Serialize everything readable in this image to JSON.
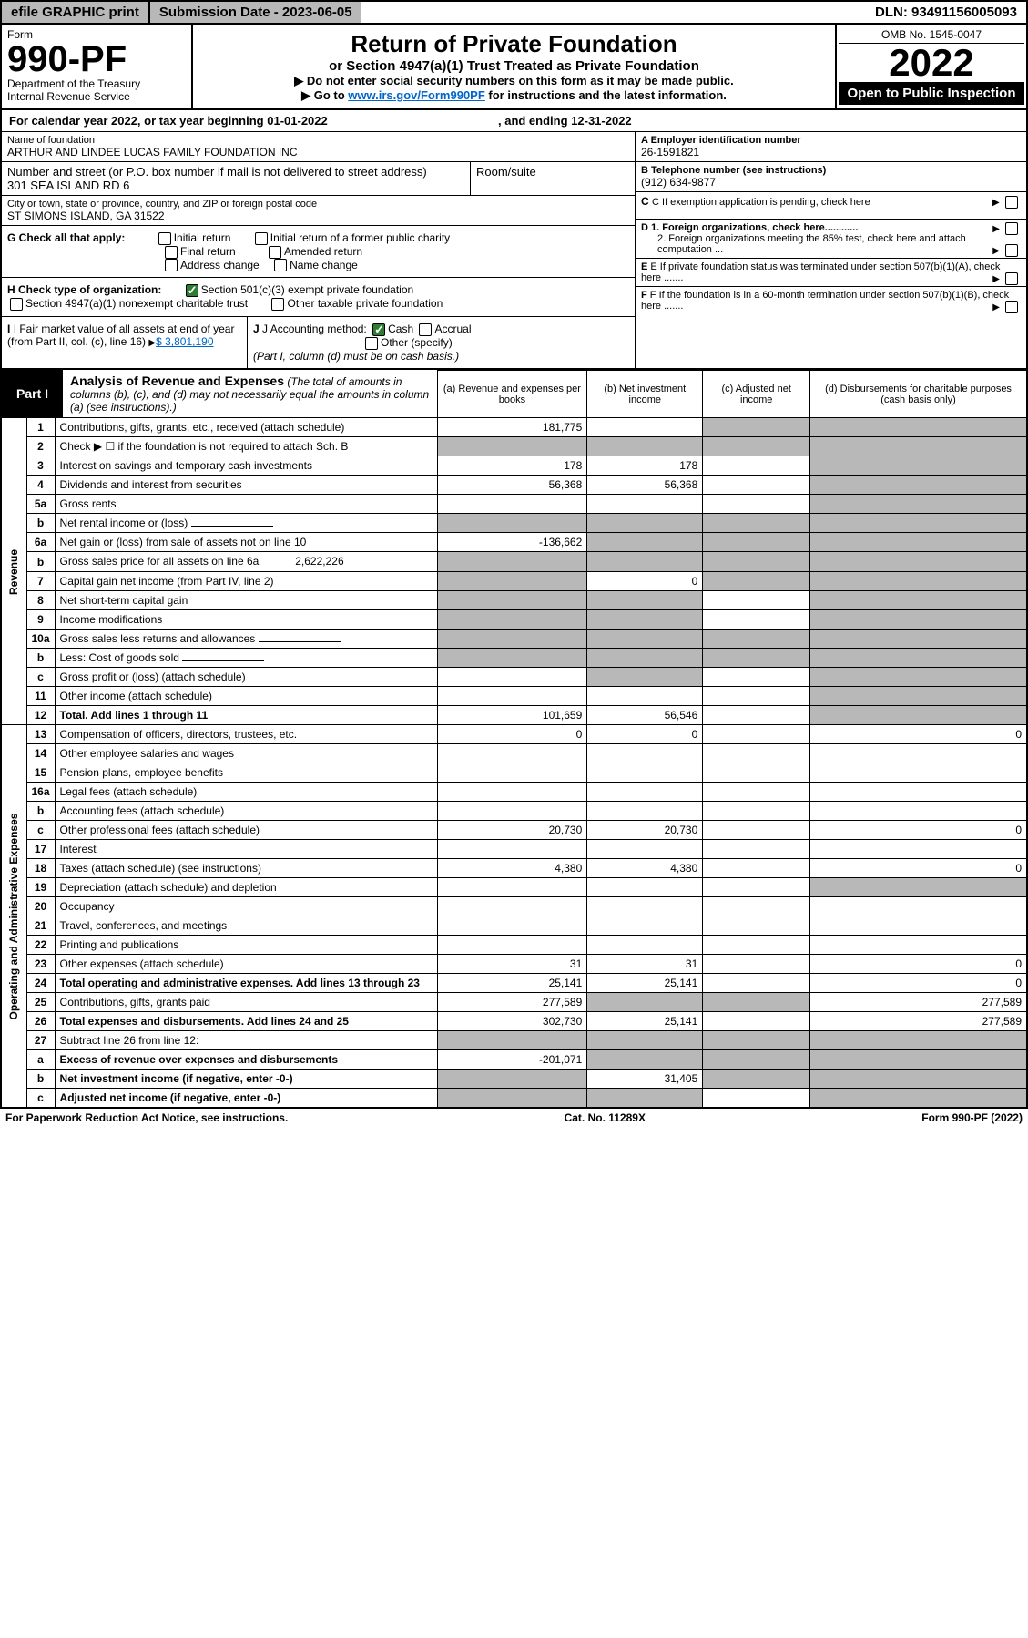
{
  "topbar": {
    "efile": "efile GRAPHIC print",
    "submission_label": "Submission Date - 2023-06-05",
    "dln": "DLN: 93491156005093"
  },
  "header": {
    "form_label": "Form",
    "form_number": "990-PF",
    "dept": "Department of the Treasury",
    "irs": "Internal Revenue Service",
    "title": "Return of Private Foundation",
    "subtitle": "or Section 4947(a)(1) Trust Treated as Private Foundation",
    "note1": "▶ Do not enter social security numbers on this form as it may be made public.",
    "note2_pre": "▶ Go to ",
    "note2_link": "www.irs.gov/Form990PF",
    "note2_post": " for instructions and the latest information.",
    "omb": "OMB No. 1545-0047",
    "year": "2022",
    "open": "Open to Public Inspection"
  },
  "calrow": {
    "pre": "For calendar year 2022, or tax year beginning ",
    "begin": "01-01-2022",
    "mid": ", and ending ",
    "end": "12-31-2022"
  },
  "info": {
    "name_lbl": "Name of foundation",
    "name": "ARTHUR AND LINDEE LUCAS FAMILY FOUNDATION INC",
    "addr_lbl": "Number and street (or P.O. box number if mail is not delivered to street address)",
    "addr": "301 SEA ISLAND RD 6",
    "room_lbl": "Room/suite",
    "city_lbl": "City or town, state or province, country, and ZIP or foreign postal code",
    "city": "ST SIMONS ISLAND, GA  31522",
    "a_lbl": "A Employer identification number",
    "a_val": "26-1591821",
    "b_lbl": "B Telephone number (see instructions)",
    "b_val": "(912) 634-9877",
    "c_lbl": "C If exemption application is pending, check here",
    "g_lbl": "G Check all that apply:",
    "g_opts": [
      "Initial return",
      "Initial return of a former public charity",
      "Final return",
      "Amended return",
      "Address change",
      "Name change"
    ],
    "d1": "D 1. Foreign organizations, check here............",
    "d2": "2. Foreign organizations meeting the 85% test, check here and attach computation ...",
    "h_lbl": "H Check type of organization:",
    "h_opt1": "Section 501(c)(3) exempt private foundation",
    "h_opt2": "Section 4947(a)(1) nonexempt charitable trust",
    "h_opt3": "Other taxable private foundation",
    "e_lbl": "E If private foundation status was terminated under section 507(b)(1)(A), check here .......",
    "i_lbl": "I Fair market value of all assets at end of year (from Part II, col. (c), line 16)",
    "i_val": "$  3,801,190",
    "j_lbl": "J Accounting method:",
    "j_opts": [
      "Cash",
      "Accrual",
      "Other (specify)"
    ],
    "j_note": "(Part I, column (d) must be on cash basis.)",
    "f_lbl": "F If the foundation is in a 60-month termination under section 507(b)(1)(B), check here ......."
  },
  "part1": {
    "label": "Part I",
    "title": "Analysis of Revenue and Expenses",
    "note": "(The total of amounts in columns (b), (c), and (d) may not necessarily equal the amounts in column (a) (see instructions).)",
    "col_a": "(a)    Revenue and expenses per books",
    "col_b": "(b)    Net investment income",
    "col_c": "(c)   Adjusted net income",
    "col_d": "(d)   Disbursements for charitable purposes (cash basis only)"
  },
  "vlabels": {
    "revenue": "Revenue",
    "opex": "Operating and Administrative Expenses"
  },
  "rows": [
    {
      "n": "1",
      "desc": "Contributions, gifts, grants, etc., received (attach schedule)",
      "a": "181,775",
      "b": "",
      "c": "grey",
      "d": "grey"
    },
    {
      "n": "2",
      "desc": "Check ▶ ☐ if the foundation is not required to attach Sch. B",
      "a": "grey",
      "b": "grey",
      "c": "grey",
      "d": "grey"
    },
    {
      "n": "3",
      "desc": "Interest on savings and temporary cash investments",
      "a": "178",
      "b": "178",
      "c": "",
      "d": "grey"
    },
    {
      "n": "4",
      "desc": "Dividends and interest from securities",
      "a": "56,368",
      "b": "56,368",
      "c": "",
      "d": "grey"
    },
    {
      "n": "5a",
      "desc": "Gross rents",
      "a": "",
      "b": "",
      "c": "",
      "d": "grey"
    },
    {
      "n": "b",
      "desc": "Net rental income or (loss)",
      "a": "grey",
      "b": "grey",
      "c": "grey",
      "d": "grey",
      "inline": ""
    },
    {
      "n": "6a",
      "desc": "Net gain or (loss) from sale of assets not on line 10",
      "a": "-136,662",
      "b": "grey",
      "c": "grey",
      "d": "grey"
    },
    {
      "n": "b",
      "desc": "Gross sales price for all assets on line 6a",
      "a": "grey",
      "b": "grey",
      "c": "grey",
      "d": "grey",
      "inline": "2,622,226"
    },
    {
      "n": "7",
      "desc": "Capital gain net income (from Part IV, line 2)",
      "a": "grey",
      "b": "0",
      "c": "grey",
      "d": "grey"
    },
    {
      "n": "8",
      "desc": "Net short-term capital gain",
      "a": "grey",
      "b": "grey",
      "c": "",
      "d": "grey"
    },
    {
      "n": "9",
      "desc": "Income modifications",
      "a": "grey",
      "b": "grey",
      "c": "",
      "d": "grey"
    },
    {
      "n": "10a",
      "desc": "Gross sales less returns and allowances",
      "a": "grey",
      "b": "grey",
      "c": "grey",
      "d": "grey",
      "inline": ""
    },
    {
      "n": "b",
      "desc": "Less: Cost of goods sold",
      "a": "grey",
      "b": "grey",
      "c": "grey",
      "d": "grey",
      "inline": ""
    },
    {
      "n": "c",
      "desc": "Gross profit or (loss) (attach schedule)",
      "a": "",
      "b": "grey",
      "c": "",
      "d": "grey"
    },
    {
      "n": "11",
      "desc": "Other income (attach schedule)",
      "a": "",
      "b": "",
      "c": "",
      "d": "grey"
    },
    {
      "n": "12",
      "desc": "Total. Add lines 1 through 11",
      "a": "101,659",
      "b": "56,546",
      "c": "",
      "d": "grey",
      "bold": true
    },
    {
      "n": "13",
      "desc": "Compensation of officers, directors, trustees, etc.",
      "a": "0",
      "b": "0",
      "c": "",
      "d": "0"
    },
    {
      "n": "14",
      "desc": "Other employee salaries and wages",
      "a": "",
      "b": "",
      "c": "",
      "d": ""
    },
    {
      "n": "15",
      "desc": "Pension plans, employee benefits",
      "a": "",
      "b": "",
      "c": "",
      "d": ""
    },
    {
      "n": "16a",
      "desc": "Legal fees (attach schedule)",
      "a": "",
      "b": "",
      "c": "",
      "d": ""
    },
    {
      "n": "b",
      "desc": "Accounting fees (attach schedule)",
      "a": "",
      "b": "",
      "c": "",
      "d": ""
    },
    {
      "n": "c",
      "desc": "Other professional fees (attach schedule)",
      "a": "20,730",
      "b": "20,730",
      "c": "",
      "d": "0"
    },
    {
      "n": "17",
      "desc": "Interest",
      "a": "",
      "b": "",
      "c": "",
      "d": ""
    },
    {
      "n": "18",
      "desc": "Taxes (attach schedule) (see instructions)",
      "a": "4,380",
      "b": "4,380",
      "c": "",
      "d": "0"
    },
    {
      "n": "19",
      "desc": "Depreciation (attach schedule) and depletion",
      "a": "",
      "b": "",
      "c": "",
      "d": "grey"
    },
    {
      "n": "20",
      "desc": "Occupancy",
      "a": "",
      "b": "",
      "c": "",
      "d": ""
    },
    {
      "n": "21",
      "desc": "Travel, conferences, and meetings",
      "a": "",
      "b": "",
      "c": "",
      "d": ""
    },
    {
      "n": "22",
      "desc": "Printing and publications",
      "a": "",
      "b": "",
      "c": "",
      "d": ""
    },
    {
      "n": "23",
      "desc": "Other expenses (attach schedule)",
      "a": "31",
      "b": "31",
      "c": "",
      "d": "0"
    },
    {
      "n": "24",
      "desc": "Total operating and administrative expenses. Add lines 13 through 23",
      "a": "25,141",
      "b": "25,141",
      "c": "",
      "d": "0",
      "bold": true
    },
    {
      "n": "25",
      "desc": "Contributions, gifts, grants paid",
      "a": "277,589",
      "b": "grey",
      "c": "grey",
      "d": "277,589"
    },
    {
      "n": "26",
      "desc": "Total expenses and disbursements. Add lines 24 and 25",
      "a": "302,730",
      "b": "25,141",
      "c": "",
      "d": "277,589",
      "bold": true
    },
    {
      "n": "27",
      "desc": "Subtract line 26 from line 12:",
      "a": "grey",
      "b": "grey",
      "c": "grey",
      "d": "grey"
    },
    {
      "n": "a",
      "desc": "Excess of revenue over expenses and disbursements",
      "a": "-201,071",
      "b": "grey",
      "c": "grey",
      "d": "grey",
      "bold": true
    },
    {
      "n": "b",
      "desc": "Net investment income (if negative, enter -0-)",
      "a": "grey",
      "b": "31,405",
      "c": "grey",
      "d": "grey",
      "bold": true
    },
    {
      "n": "c",
      "desc": "Adjusted net income (if negative, enter -0-)",
      "a": "grey",
      "b": "grey",
      "c": "",
      "d": "grey",
      "bold": true
    }
  ],
  "footer": {
    "left": "For Paperwork Reduction Act Notice, see instructions.",
    "mid": "Cat. No. 11289X",
    "right": "Form 990-PF (2022)"
  },
  "colors": {
    "grey": "#b8b8b8",
    "black": "#000000",
    "link": "#0066cc",
    "green": "#2e7d32"
  }
}
